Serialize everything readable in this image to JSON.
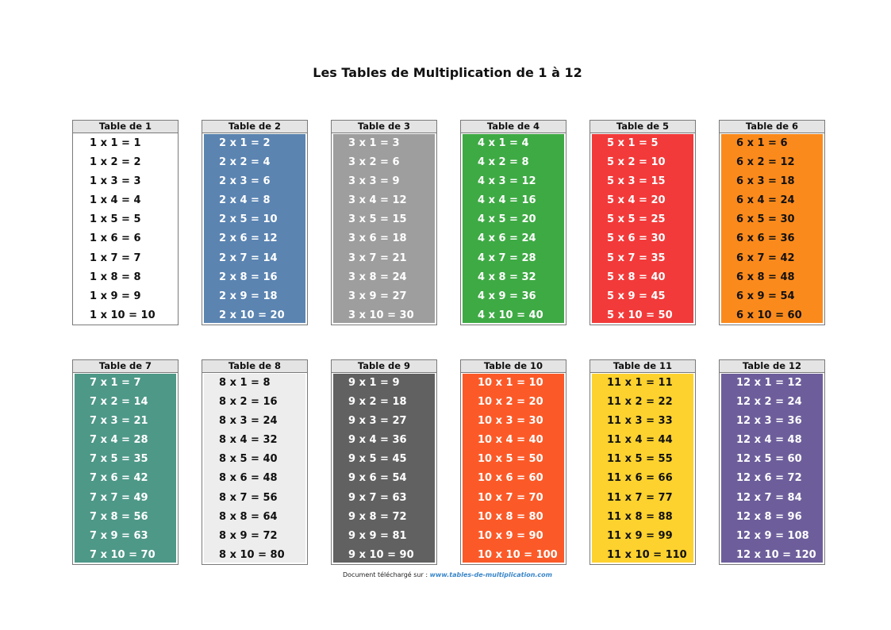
{
  "title": "Les Tables de Multiplication de 1 à 12",
  "tables": [
    {
      "header": "Table de 1",
      "bg": "#ffffff",
      "fg": "#111111",
      "rows": [
        "1 x 1 = 1",
        "1 x 2 = 2",
        "1 x 3 = 3",
        "1 x 4 = 4",
        "1 x 5 = 5",
        "1 x 6 = 6",
        "1 x 7 = 7",
        "1 x 8 = 8",
        "1 x 9 = 9",
        "1 x 10 = 10"
      ]
    },
    {
      "header": "Table de 2",
      "bg": "#5b84b1",
      "fg": "#ffffff",
      "rows": [
        "2 x 1 = 2",
        "2 x 2 = 4",
        "2 x 3 = 6",
        "2 x 4 = 8",
        "2 x 5 = 10",
        "2 x 6 = 12",
        "2 x 7 = 14",
        "2 x 8 = 16",
        "2 x 9 = 18",
        "2 x 10 = 20"
      ]
    },
    {
      "header": "Table de 3",
      "bg": "#9e9e9e",
      "fg": "#ffffff",
      "rows": [
        "3 x 1 = 3",
        "3 x 2 = 6",
        "3 x 3 = 9",
        "3 x 4 = 12",
        "3 x 5 = 15",
        "3 x 6 = 18",
        "3 x 7 = 21",
        "3 x 8 = 24",
        "3 x 9 = 27",
        "3 x 10 = 30"
      ]
    },
    {
      "header": "Table de 4",
      "bg": "#3eaa44",
      "fg": "#ffffff",
      "rows": [
        "4 x 1 = 4",
        "4 x 2 = 8",
        "4 x 3 = 12",
        "4 x 4 = 16",
        "4 x 5 = 20",
        "4 x 6 = 24",
        "4 x 7 = 28",
        "4 x 8 = 32",
        "4 x 9 = 36",
        "4 x 10 = 40"
      ]
    },
    {
      "header": "Table de 5",
      "bg": "#f23a3a",
      "fg": "#ffffff",
      "rows": [
        "5 x 1 = 5",
        "5 x 2 = 10",
        "5 x 3 = 15",
        "5 x 4 = 20",
        "5 x 5 = 25",
        "5 x 6 = 30",
        "5 x 7 = 35",
        "5 x 8 = 40",
        "5 x 9 = 45",
        "5 x 10 = 50"
      ]
    },
    {
      "header": "Table de 6",
      "bg": "#fb8a1c",
      "fg": "#111111",
      "rows": [
        "6 x 1 = 6",
        "6 x 2 = 12",
        "6 x 3 = 18",
        "6 x 4 = 24",
        "6 x 5 = 30",
        "6 x 6 = 36",
        "6 x 7 = 42",
        "6 x 8 = 48",
        "6 x 9 = 54",
        "6 x 10 = 60"
      ]
    },
    {
      "header": "Table de 7",
      "bg": "#4e9888",
      "fg": "#ffffff",
      "rows": [
        "7 x 1 = 7",
        "7 x 2 = 14",
        "7 x 3 = 21",
        "7 x 4 = 28",
        "7 x 5 = 35",
        "7 x 6 = 42",
        "7 x 7 = 49",
        "7 x 8 = 56",
        "7 x 9 = 63",
        "7 x 10 = 70"
      ]
    },
    {
      "header": "Table de 8",
      "bg": "#ededed",
      "fg": "#111111",
      "rows": [
        "8 x 1 = 8",
        "8 x 2 = 16",
        "8 x 3 = 24",
        "8 x 4 = 32",
        "8 x 5 = 40",
        "8 x 6 = 48",
        "8 x 7 = 56",
        "8 x 8 = 64",
        "8 x 9 = 72",
        "8 x 10 = 80"
      ]
    },
    {
      "header": "Table de 9",
      "bg": "#616161",
      "fg": "#ffffff",
      "rows": [
        "9 x 1 = 9",
        "9 x 2 = 18",
        "9 x 3 = 27",
        "9 x 4 = 36",
        "9 x 5 = 45",
        "9 x 6 = 54",
        "9 x 7 = 63",
        "9 x 8 = 72",
        "9 x 9 = 81",
        "9 x 10 = 90"
      ]
    },
    {
      "header": "Table de 10",
      "bg": "#fb5a28",
      "fg": "#ffffff",
      "rows": [
        "10 x 1 = 10",
        "10 x 2 = 20",
        "10 x 3 = 30",
        "10 x 4 = 40",
        "10 x 5 = 50",
        "10 x 6 = 60",
        "10 x 7 = 70",
        "10 x 8 = 80",
        "10 x 9 = 90",
        "10 x 10 = 100"
      ]
    },
    {
      "header": "Table de 11",
      "bg": "#fdd22e",
      "fg": "#111111",
      "rows": [
        "11 x 1 = 11",
        "11 x 2 = 22",
        "11 x 3 = 33",
        "11 x 4 = 44",
        "11 x 5 = 55",
        "11 x 6 = 66",
        "11 x 7 = 77",
        "11 x 8 = 88",
        "11 x 9 = 99",
        "11 x 10 = 110"
      ]
    },
    {
      "header": "Table de 12",
      "bg": "#6d5e9b",
      "fg": "#ffffff",
      "rows": [
        "12 x 1 = 12",
        "12 x 2 = 24",
        "12 x 3 = 36",
        "12 x 4 = 48",
        "12 x 5 = 60",
        "12 x 6 = 72",
        "12 x 7 = 84",
        "12 x 8 = 96",
        "12 x 9 = 108",
        "12 x 10 = 120"
      ]
    }
  ],
  "footer": {
    "prefix": "Document téléchargé sur : ",
    "link": "www.tables-de-multiplication.com"
  }
}
